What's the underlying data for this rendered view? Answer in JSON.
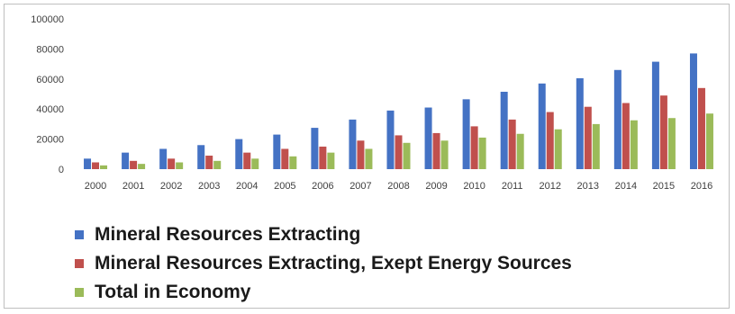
{
  "chart_data": {
    "type": "bar",
    "categories": [
      "2000",
      "2001",
      "2002",
      "2003",
      "2004",
      "2005",
      "2006",
      "2007",
      "2008",
      "2009",
      "2010",
      "2011",
      "2012",
      "2013",
      "2014",
      "2015",
      "2016"
    ],
    "series": [
      {
        "name": "Mineral Resources Extracting",
        "color": "#4472c4",
        "values": [
          7000,
          11000,
          13500,
          16000,
          20000,
          23000,
          27500,
          33000,
          39000,
          41000,
          46500,
          51500,
          57000,
          60500,
          66000,
          71500,
          77000
        ]
      },
      {
        "name": "Mineral Resources Extracting, Exept Energy Sources",
        "color": "#c0504d",
        "values": [
          4500,
          5500,
          7000,
          9000,
          11000,
          13500,
          15000,
          19000,
          22500,
          24000,
          28500,
          33000,
          38000,
          41500,
          44000,
          49000,
          54000
        ]
      },
      {
        "name": "Total in Economy",
        "color": "#9bbb59",
        "values": [
          2500,
          3500,
          4500,
          5500,
          7000,
          8500,
          11000,
          13500,
          17500,
          19000,
          21000,
          23500,
          26500,
          30000,
          32500,
          34000,
          37000
        ]
      }
    ],
    "yticks": [
      "0",
      "20000",
      "40000",
      "60000",
      "80000",
      "100000"
    ],
    "ylim": [
      0,
      100000
    ],
    "grid": false,
    "legend_position": "bottom-left"
  }
}
